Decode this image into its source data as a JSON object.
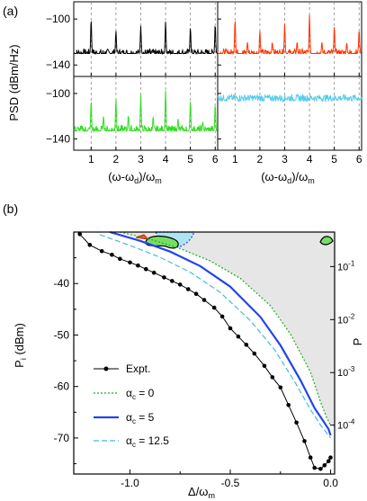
{
  "chart_data": [
    {
      "panel_label": "(a)",
      "type": "line",
      "ylabel": "PSD (dBm/Hz)",
      "xlabel": "(ω-ω_d)/ω_m",
      "x_ticks": [
        "1",
        "2",
        "3",
        "4",
        "5",
        "6"
      ],
      "y_ticks": [
        "−100",
        "−140"
      ],
      "xlim": [
        0.3,
        6.1
      ],
      "ylim": [
        -150,
        -85
      ],
      "grid": "dashed vertical lines at integer x",
      "subplots": [
        {
          "position": "top-left",
          "color": "#000000",
          "baseline_db": -130,
          "peaks_x": [
            1,
            2,
            3,
            4,
            5,
            6
          ],
          "peaks_db": [
            -100,
            -110,
            -106,
            -102,
            -107,
            -104
          ],
          "noise_db": 4
        },
        {
          "position": "top-right",
          "color": "#ff3300",
          "baseline_db": -130,
          "peaks_x": [
            1,
            1.5,
            2,
            2.5,
            3,
            3.5,
            4,
            4.5,
            5,
            5.5,
            6
          ],
          "peaks_db": [
            -100,
            -120,
            -110,
            -120,
            -104,
            -120,
            -96,
            -120,
            -106,
            -121,
            -109
          ],
          "noise_db": 4
        },
        {
          "position": "bottom-left",
          "color": "#33dd22",
          "baseline_db": -133,
          "peaks_x": [
            1,
            1.5,
            2,
            2.5,
            3,
            3.5,
            4,
            4.5,
            5,
            5.5,
            6
          ],
          "peaks_db": [
            -106,
            -120,
            -104,
            -119,
            -101,
            -120,
            -97,
            -122,
            -106,
            -125,
            -109
          ],
          "noise_db": 5
        },
        {
          "position": "bottom-right",
          "color": "#55ccee",
          "baseline_db": -104,
          "peaks_x": [],
          "peaks_db": [],
          "noise_db": 3
        }
      ]
    },
    {
      "panel_label": "(b)",
      "type": "line",
      "xlabel": "Δ/ω_m",
      "ylabel": "P_i (dBm)",
      "y2label": "P",
      "xlim": [
        -1.28,
        0.02
      ],
      "ylim": [
        -77,
        -30
      ],
      "x_ticks": [
        "-1.0",
        "-0.5",
        "0.0"
      ],
      "y_ticks": [
        "-40",
        "-50",
        "-60",
        "-70"
      ],
      "y2_ticks": [
        {
          "base": "10",
          "exp": "-1",
          "at_dbm": -36.7
        },
        {
          "base": "10",
          "exp": "-2",
          "at_dbm": -47.0
        },
        {
          "base": "10",
          "exp": "-3",
          "at_dbm": -57.3
        },
        {
          "base": "10",
          "exp": "-4",
          "at_dbm": -67.5
        }
      ],
      "series": [
        {
          "name": "Expt.",
          "color": "#000000",
          "marker": "dot",
          "x": [
            -1.25,
            -1.2,
            -1.14,
            -1.09,
            -1.05,
            -1.0,
            -0.96,
            -0.92,
            -0.88,
            -0.83,
            -0.79,
            -0.75,
            -0.71,
            -0.67,
            -0.63,
            -0.58,
            -0.54,
            -0.5,
            -0.46,
            -0.42,
            -0.38,
            -0.33,
            -0.29,
            -0.25,
            -0.21,
            -0.17,
            -0.13,
            -0.1,
            -0.08,
            -0.05,
            -0.03,
            -0.01,
            0.0
          ],
          "y": [
            -30.4,
            -32.5,
            -33.7,
            -34.4,
            -35.2,
            -35.9,
            -36.5,
            -37.2,
            -37.9,
            -38.8,
            -39.5,
            -40.2,
            -41.1,
            -42.0,
            -43.2,
            -44.7,
            -46.4,
            -48.7,
            -50.3,
            -51.9,
            -53.6,
            -56.0,
            -58.2,
            -60.2,
            -63.6,
            -67.0,
            -70.6,
            -73.8,
            -75.8,
            -76.0,
            -75.3,
            -74.5,
            -73.8
          ]
        },
        {
          "name": "α_c = 0",
          "color": "#22aa22",
          "style": "dotted",
          "x": [
            -1.05,
            -0.9,
            -0.75,
            -0.6,
            -0.45,
            -0.3,
            -0.2,
            -0.1,
            -0.05,
            -0.02,
            0.0
          ],
          "y": [
            -30.0,
            -31.4,
            -33.2,
            -35.6,
            -39.0,
            -44.3,
            -49.8,
            -57.2,
            -63.0,
            -66.0,
            -67.5
          ]
        },
        {
          "name": "α_c = 5",
          "color": "#2244ee",
          "style": "solid",
          "x": [
            -1.1,
            -0.95,
            -0.8,
            -0.65,
            -0.5,
            -0.35,
            -0.25,
            -0.15,
            -0.08,
            -0.04,
            -0.01,
            0.0
          ],
          "y": [
            -30.0,
            -31.7,
            -33.8,
            -36.6,
            -40.6,
            -46.5,
            -52.0,
            -58.8,
            -64.2,
            -66.5,
            -68.3,
            -69.5
          ]
        },
        {
          "name": "α_c = 12.5",
          "color": "#44bbdd",
          "style": "dashed",
          "x": [
            -1.15,
            -1.0,
            -0.85,
            -0.7,
            -0.55,
            -0.4,
            -0.28,
            -0.18,
            -0.1,
            -0.05,
            -0.02,
            0.0
          ],
          "y": [
            -30.5,
            -32.6,
            -34.9,
            -37.8,
            -41.7,
            -47.2,
            -52.8,
            -59.0,
            -64.5,
            -67.5,
            -69.0,
            -70.0
          ]
        }
      ],
      "legend_position": "lower-left"
    }
  ]
}
